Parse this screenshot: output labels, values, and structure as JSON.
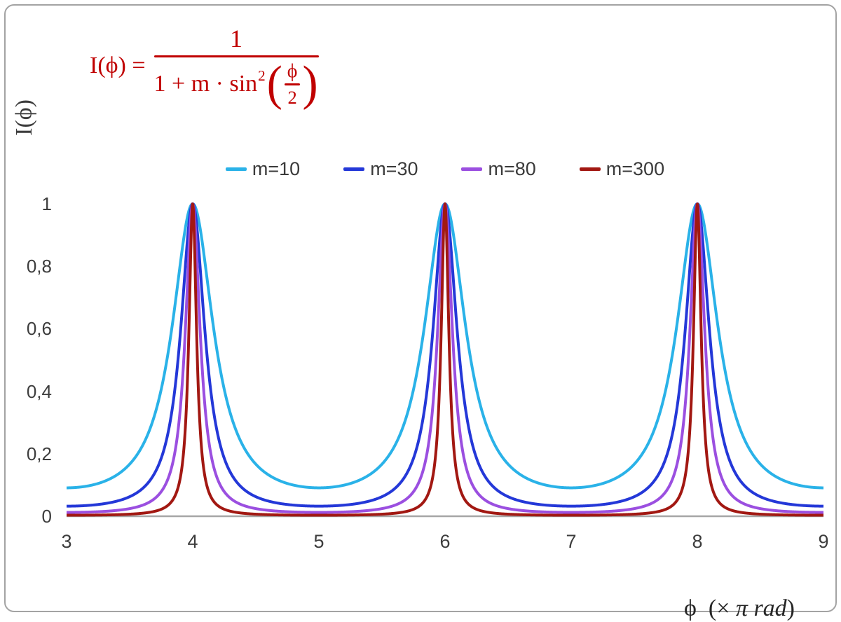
{
  "style": {
    "formula_color": "#c00000",
    "axis_line_color": "#a6a6a6",
    "tick_color": "#3d3d3d"
  },
  "formula": {
    "lhs": "I(ϕ) =",
    "num": "1",
    "den_text": "1 + m · sin",
    "den_exp": "2",
    "paren_open": "(",
    "inner_num": "ϕ",
    "inner_den": "2",
    "paren_close": ")"
  },
  "axes": {
    "y_title": "I(ϕ)",
    "x_title_pre": "ϕ  (× ",
    "x_title_italic": "π rad",
    "x_title_post": ")"
  },
  "chart_data": {
    "type": "line",
    "title": "",
    "xlabel": "ϕ (× π rad)",
    "ylabel": "I(ϕ)",
    "formula": "I(phi) = 1 / (1 + m * sin^2(phi/2)), x axis in units of pi rad",
    "x_range": [
      3,
      9
    ],
    "y_range": [
      0,
      1
    ],
    "x_tick_values": [
      3,
      4,
      5,
      6,
      7,
      8,
      9
    ],
    "x_tick_labels": [
      "3",
      "4",
      "5",
      "6",
      "7",
      "8",
      "9"
    ],
    "y_tick_values": [
      0,
      0.2,
      0.4,
      0.6,
      0.8,
      1
    ],
    "y_tick_labels": [
      "0",
      "0,2",
      "0,4",
      "0,6",
      "0,8",
      "1"
    ],
    "grid": false,
    "legend_position": "top-center",
    "peaks_at_x": [
      4,
      6,
      8
    ],
    "peak_value": 1,
    "series": [
      {
        "name": "m=10",
        "m": 10,
        "color": "#2ab2e8",
        "value_at_x3": 0.0909
      },
      {
        "name": "m=30",
        "m": 30,
        "color": "#2438d8",
        "value_at_x3": 0.0323
      },
      {
        "name": "m=80",
        "m": 80,
        "color": "#9b4fe0",
        "value_at_x3": 0.0123
      },
      {
        "name": "m=300",
        "m": 300,
        "color": "#a21812",
        "value_at_x3": 0.0033
      }
    ]
  }
}
